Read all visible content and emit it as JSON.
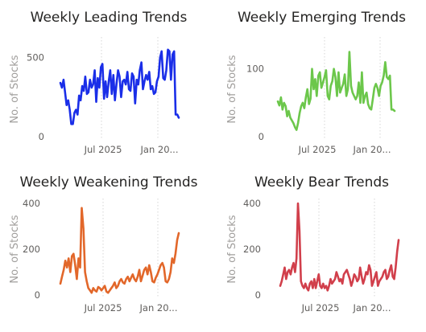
{
  "chart_data": [
    {
      "type": "line",
      "title": "Weekly Leading Trends",
      "ylabel": "No. of Stocks",
      "color": "#1a2ee8",
      "ylim": [
        0,
        600
      ],
      "yticks": [
        0,
        500
      ],
      "x_tick_labels": [
        "Jul 2025",
        "Jan 20..."
      ],
      "grid": "vertical-dotted",
      "values": [
        340,
        310,
        360,
        280,
        200,
        230,
        170,
        80,
        80,
        150,
        170,
        140,
        260,
        230,
        320,
        290,
        380,
        270,
        280,
        360,
        310,
        330,
        420,
        220,
        370,
        310,
        440,
        460,
        240,
        350,
        250,
        350,
        420,
        270,
        390,
        230,
        330,
        420,
        380,
        250,
        350,
        360,
        330,
        410,
        300,
        290,
        400,
        380,
        210,
        360,
        330,
        420,
        470,
        300,
        350,
        390,
        360,
        410,
        300,
        320,
        270,
        280,
        350,
        380,
        500,
        540,
        370,
        360,
        420,
        550,
        540,
        360,
        520,
        540,
        140,
        140,
        120
      ]
    },
    {
      "type": "line",
      "title": "Weekly Emerging Trends",
      "ylabel": "No. of Stocks",
      "color": "#6cc74b",
      "ylim": [
        0,
        140
      ],
      "yticks": [
        0,
        100
      ],
      "x_tick_labels": [
        "Jul 2025",
        "Jan 20..."
      ],
      "grid": "vertical-dotted",
      "values": [
        52,
        46,
        58,
        40,
        50,
        45,
        30,
        38,
        28,
        24,
        20,
        14,
        10,
        20,
        35,
        45,
        50,
        42,
        58,
        70,
        48,
        56,
        100,
        70,
        85,
        60,
        90,
        95,
        72,
        80,
        88,
        98,
        60,
        55,
        75,
        82,
        100,
        88,
        60,
        95,
        65,
        72,
        78,
        92,
        60,
        70,
        125,
        75,
        65,
        60,
        55,
        60,
        80,
        50,
        95,
        50,
        60,
        65,
        48,
        42,
        40,
        55,
        72,
        78,
        72,
        60,
        75,
        80,
        90,
        110,
        88,
        85,
        90,
        40,
        40,
        38
      ]
    },
    {
      "type": "line",
      "title": "Weekly Weakening Trends",
      "ylabel": "No. of Stocks",
      "color": "#e2672a",
      "ylim": [
        0,
        400
      ],
      "yticks": [
        0,
        200,
        400
      ],
      "x_tick_labels": [
        "Jul 2025",
        "Jan 20..."
      ],
      "grid": "vertical-dotted",
      "values": [
        50,
        80,
        110,
        150,
        120,
        160,
        100,
        170,
        180,
        130,
        70,
        160,
        120,
        380,
        290,
        100,
        60,
        30,
        20,
        10,
        30,
        20,
        15,
        35,
        30,
        20,
        30,
        40,
        15,
        10,
        20,
        30,
        40,
        55,
        30,
        40,
        60,
        70,
        55,
        50,
        70,
        80,
        60,
        75,
        90,
        70,
        60,
        80,
        110,
        60,
        85,
        110,
        120,
        90,
        130,
        100,
        60,
        55,
        75,
        90,
        110,
        130,
        140,
        120,
        60,
        55,
        70,
        100,
        160,
        140,
        180,
        240,
        270
      ]
    },
    {
      "type": "line",
      "title": "Weekly Bear Trends",
      "ylabel": "No. of Stocks",
      "color": "#d13f4b",
      "ylim": [
        0,
        400
      ],
      "yticks": [
        0,
        200,
        400
      ],
      "x_tick_labels": [
        "Jul 2025",
        "Jan 20..."
      ],
      "grid": "vertical-dotted",
      "values": [
        40,
        60,
        90,
        120,
        70,
        100,
        110,
        90,
        120,
        140,
        100,
        160,
        400,
        280,
        60,
        40,
        30,
        50,
        30,
        20,
        50,
        60,
        30,
        70,
        30,
        60,
        90,
        40,
        30,
        50,
        30,
        40,
        20,
        40,
        70,
        50,
        60,
        70,
        100,
        80,
        60,
        70,
        50,
        90,
        100,
        110,
        90,
        70,
        40,
        60,
        90,
        80,
        60,
        70,
        120,
        80,
        50,
        70,
        100,
        90,
        130,
        110,
        40,
        60,
        80,
        100,
        40,
        60,
        70,
        80,
        100,
        110,
        70,
        80,
        110,
        130,
        80,
        70,
        120,
        190,
        240
      ]
    }
  ]
}
